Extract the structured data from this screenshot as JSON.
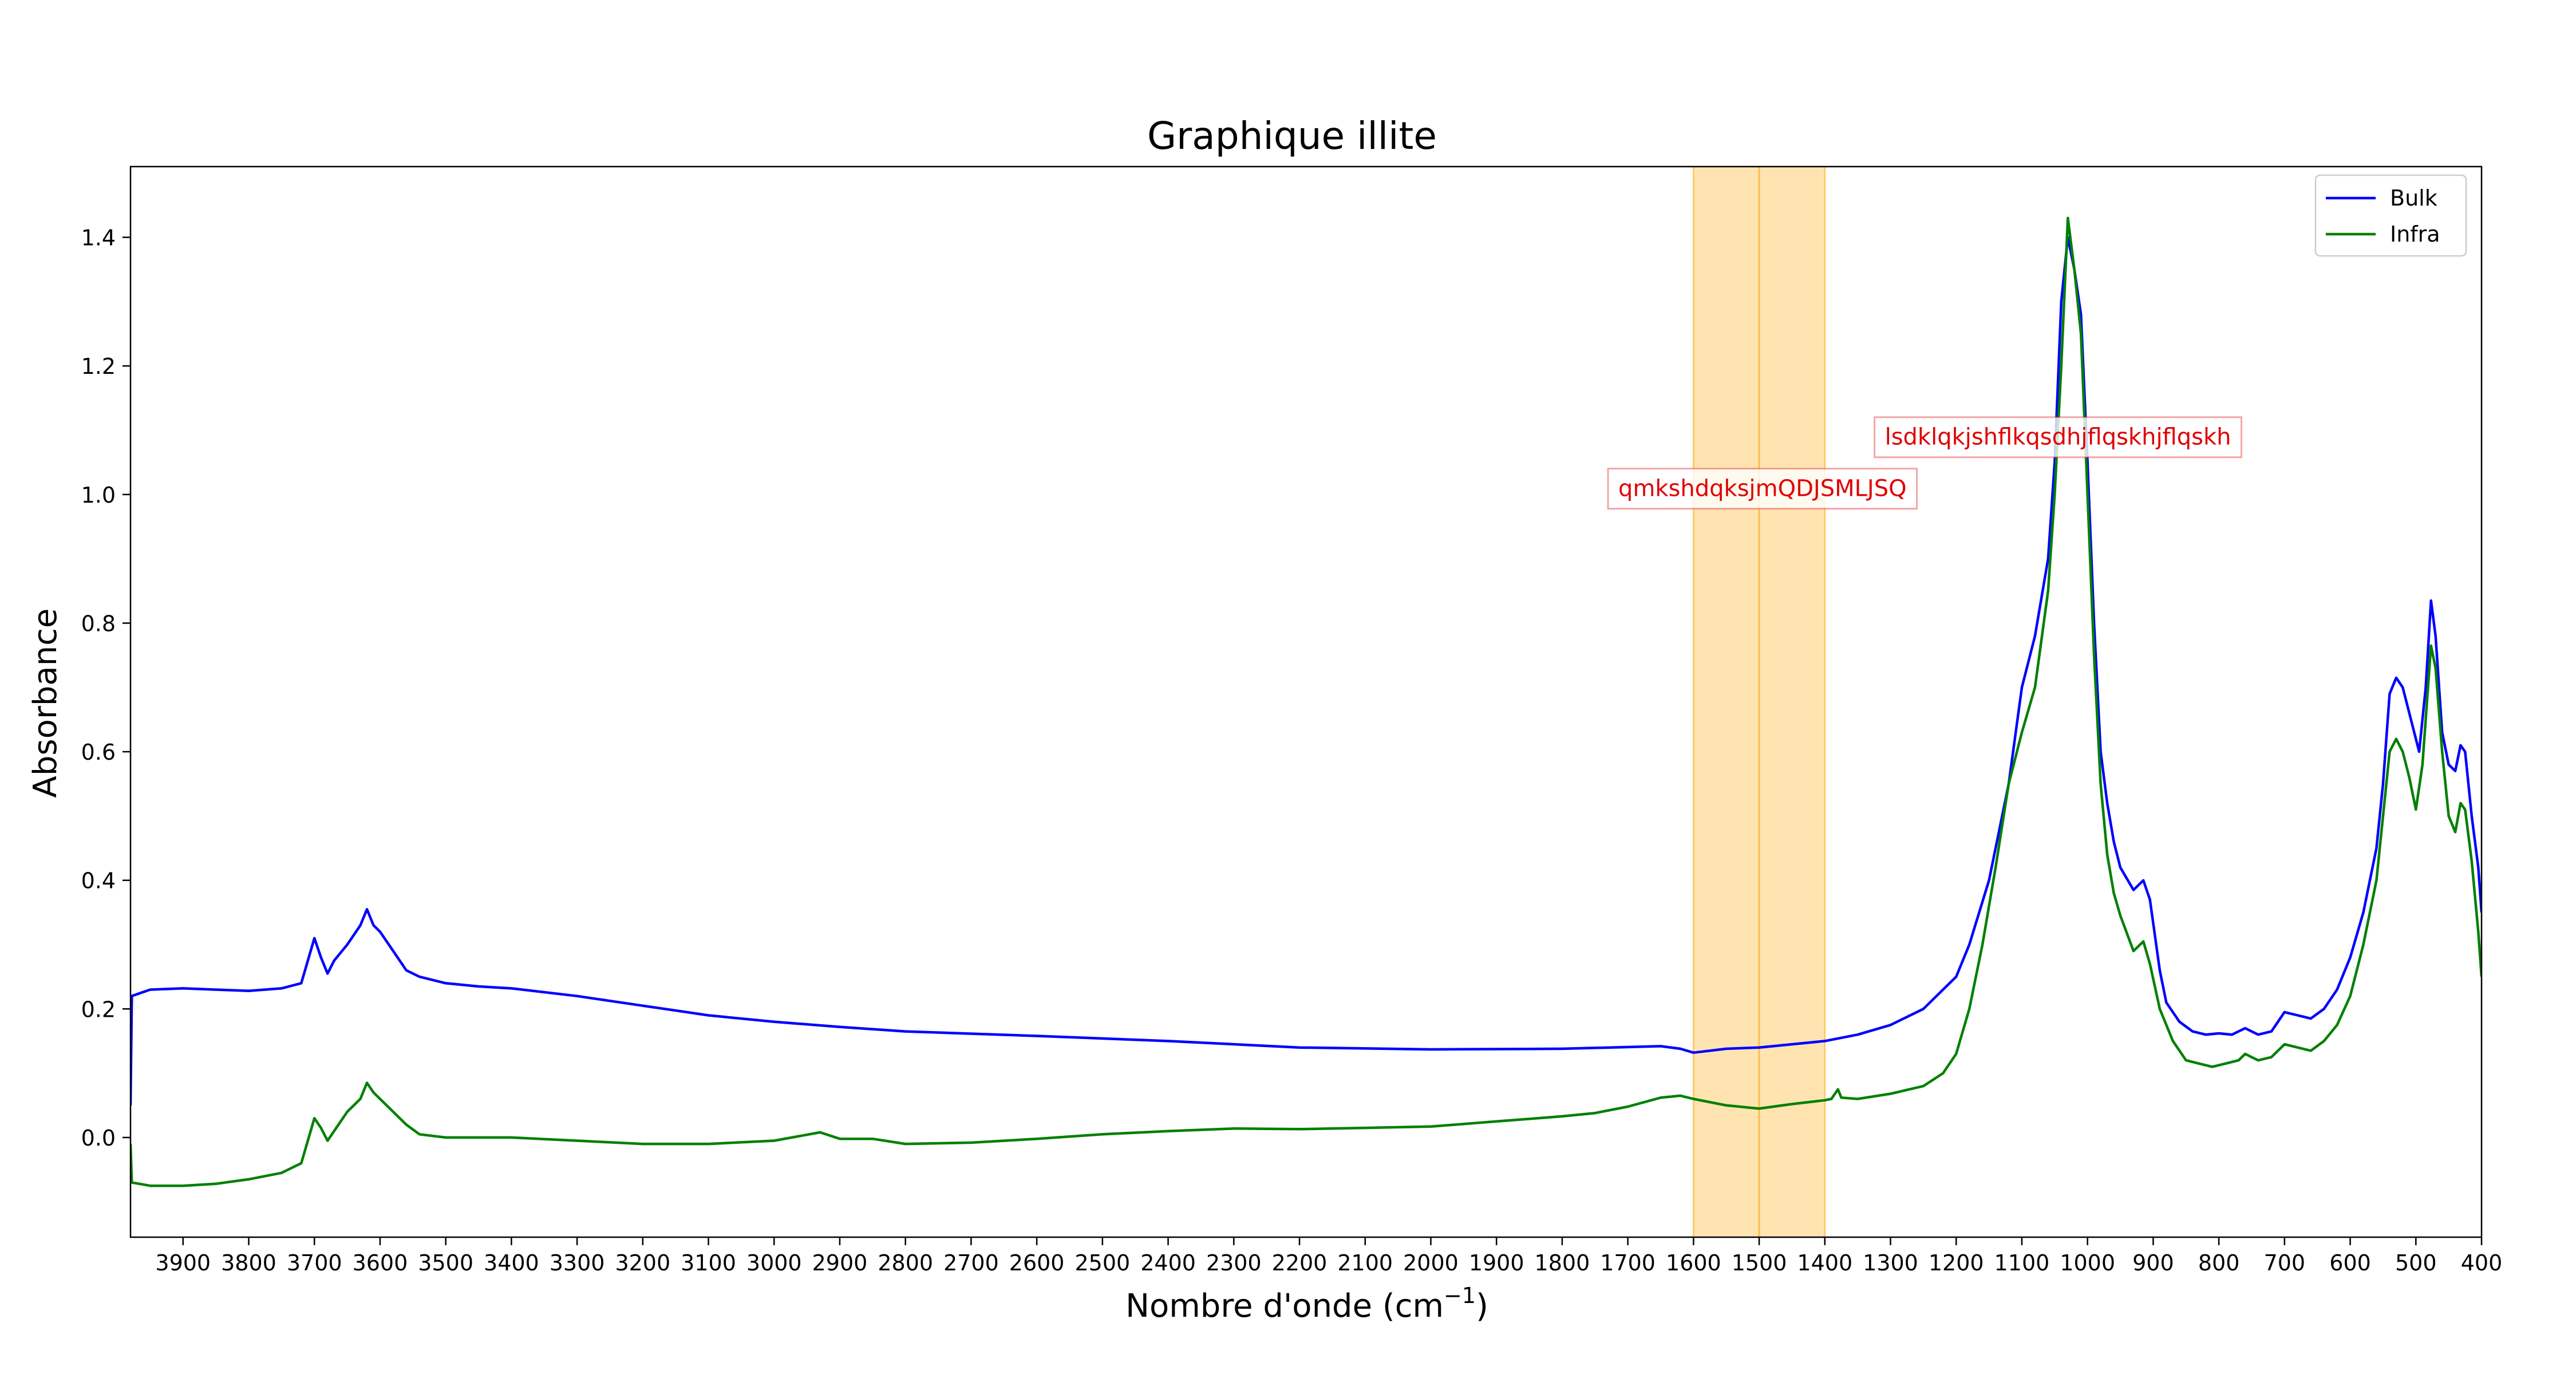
{
  "chart_data": {
    "type": "line",
    "title": "Graphique illite",
    "xlabel": "Nombre d'onde (cm",
    "xlabel_sup": "−1",
    "xlabel_close": ")",
    "ylabel": "Absorbance",
    "xlim": [
      3980,
      400
    ],
    "x_inverted": true,
    "ylim": [
      -0.155,
      1.51
    ],
    "x_ticks": [
      3900,
      3800,
      3700,
      3600,
      3500,
      3400,
      3300,
      3200,
      3100,
      3000,
      2900,
      2800,
      2700,
      2600,
      2500,
      2400,
      2300,
      2200,
      2100,
      2000,
      1900,
      1800,
      1700,
      1600,
      1500,
      1400,
      1300,
      1200,
      1100,
      1000,
      900,
      800,
      700,
      600,
      500,
      400
    ],
    "y_ticks": [
      0.0,
      0.2,
      0.4,
      0.6,
      0.8,
      1.0,
      1.2,
      1.4
    ],
    "y_tick_labels": [
      "0.0",
      "0.2",
      "0.4",
      "0.6",
      "0.8",
      "1.0",
      "1.2",
      "1.4"
    ],
    "grid": false,
    "legend_position": "top-right",
    "highlight_band": {
      "x_from": 1600,
      "x_to": 1400,
      "center_line": 1500,
      "color": "#ffa500"
    },
    "annotations": [
      {
        "text": "lsdklqkjshflkqsdhjflqskhjflqskh",
        "x": 1045,
        "y": 1.09,
        "color": "#e00000"
      },
      {
        "text": "qmkshdqksjmQDJSMLJSQ",
        "x": 1495,
        "y": 1.01,
        "color": "#e00000"
      }
    ],
    "series": [
      {
        "name": "Bulk",
        "color": "#0000ff",
        "points": [
          [
            3980,
            0.05
          ],
          [
            3978,
            0.22
          ],
          [
            3950,
            0.23
          ],
          [
            3900,
            0.232
          ],
          [
            3850,
            0.23
          ],
          [
            3800,
            0.228
          ],
          [
            3750,
            0.232
          ],
          [
            3720,
            0.24
          ],
          [
            3700,
            0.31
          ],
          [
            3690,
            0.28
          ],
          [
            3680,
            0.255
          ],
          [
            3670,
            0.275
          ],
          [
            3650,
            0.3
          ],
          [
            3630,
            0.33
          ],
          [
            3620,
            0.355
          ],
          [
            3610,
            0.33
          ],
          [
            3600,
            0.32
          ],
          [
            3580,
            0.29
          ],
          [
            3560,
            0.26
          ],
          [
            3540,
            0.25
          ],
          [
            3500,
            0.24
          ],
          [
            3450,
            0.235
          ],
          [
            3400,
            0.232
          ],
          [
            3300,
            0.22
          ],
          [
            3200,
            0.205
          ],
          [
            3100,
            0.19
          ],
          [
            3000,
            0.18
          ],
          [
            2900,
            0.172
          ],
          [
            2800,
            0.165
          ],
          [
            2600,
            0.158
          ],
          [
            2400,
            0.15
          ],
          [
            2200,
            0.14
          ],
          [
            2000,
            0.137
          ],
          [
            1800,
            0.138
          ],
          [
            1650,
            0.142
          ],
          [
            1620,
            0.138
          ],
          [
            1600,
            0.132
          ],
          [
            1550,
            0.138
          ],
          [
            1500,
            0.14
          ],
          [
            1400,
            0.15
          ],
          [
            1350,
            0.16
          ],
          [
            1300,
            0.175
          ],
          [
            1250,
            0.2
          ],
          [
            1200,
            0.25
          ],
          [
            1180,
            0.3
          ],
          [
            1150,
            0.4
          ],
          [
            1120,
            0.55
          ],
          [
            1100,
            0.7
          ],
          [
            1080,
            0.78
          ],
          [
            1060,
            0.9
          ],
          [
            1050,
            1.05
          ],
          [
            1040,
            1.3
          ],
          [
            1030,
            1.4
          ],
          [
            1020,
            1.35
          ],
          [
            1010,
            1.28
          ],
          [
            1000,
            1.05
          ],
          [
            990,
            0.8
          ],
          [
            980,
            0.6
          ],
          [
            970,
            0.52
          ],
          [
            960,
            0.46
          ],
          [
            950,
            0.42
          ],
          [
            930,
            0.385
          ],
          [
            915,
            0.4
          ],
          [
            905,
            0.37
          ],
          [
            890,
            0.26
          ],
          [
            880,
            0.21
          ],
          [
            860,
            0.18
          ],
          [
            840,
            0.165
          ],
          [
            820,
            0.16
          ],
          [
            800,
            0.162
          ],
          [
            780,
            0.16
          ],
          [
            760,
            0.17
          ],
          [
            740,
            0.16
          ],
          [
            720,
            0.165
          ],
          [
            700,
            0.195
          ],
          [
            680,
            0.19
          ],
          [
            660,
            0.185
          ],
          [
            640,
            0.2
          ],
          [
            620,
            0.23
          ],
          [
            600,
            0.28
          ],
          [
            580,
            0.35
          ],
          [
            560,
            0.45
          ],
          [
            550,
            0.55
          ],
          [
            540,
            0.69
          ],
          [
            530,
            0.715
          ],
          [
            520,
            0.7
          ],
          [
            510,
            0.66
          ],
          [
            495,
            0.6
          ],
          [
            485,
            0.7
          ],
          [
            477,
            0.835
          ],
          [
            470,
            0.78
          ],
          [
            460,
            0.63
          ],
          [
            450,
            0.58
          ],
          [
            440,
            0.57
          ],
          [
            432,
            0.61
          ],
          [
            425,
            0.6
          ],
          [
            415,
            0.5
          ],
          [
            405,
            0.42
          ],
          [
            400,
            0.35
          ]
        ]
      },
      {
        "name": "Infra",
        "color": "#008000",
        "points": [
          [
            3980,
            -0.01
          ],
          [
            3978,
            -0.07
          ],
          [
            3950,
            -0.075
          ],
          [
            3900,
            -0.075
          ],
          [
            3850,
            -0.072
          ],
          [
            3800,
            -0.065
          ],
          [
            3750,
            -0.055
          ],
          [
            3720,
            -0.04
          ],
          [
            3700,
            0.03
          ],
          [
            3690,
            0.015
          ],
          [
            3680,
            -0.005
          ],
          [
            3670,
            0.01
          ],
          [
            3650,
            0.04
          ],
          [
            3630,
            0.06
          ],
          [
            3620,
            0.085
          ],
          [
            3610,
            0.07
          ],
          [
            3600,
            0.06
          ],
          [
            3580,
            0.04
          ],
          [
            3560,
            0.02
          ],
          [
            3540,
            0.005
          ],
          [
            3500,
            0.0
          ],
          [
            3400,
            0.0
          ],
          [
            3300,
            -0.005
          ],
          [
            3200,
            -0.01
          ],
          [
            3100,
            -0.01
          ],
          [
            3000,
            -0.005
          ],
          [
            2930,
            0.008
          ],
          [
            2900,
            -0.002
          ],
          [
            2850,
            -0.002
          ],
          [
            2800,
            -0.01
          ],
          [
            2700,
            -0.008
          ],
          [
            2600,
            -0.002
          ],
          [
            2500,
            0.005
          ],
          [
            2400,
            0.01
          ],
          [
            2300,
            0.014
          ],
          [
            2200,
            0.013
          ],
          [
            2100,
            0.015
          ],
          [
            2000,
            0.017
          ],
          [
            1900,
            0.025
          ],
          [
            1800,
            0.033
          ],
          [
            1750,
            0.038
          ],
          [
            1700,
            0.048
          ],
          [
            1650,
            0.062
          ],
          [
            1620,
            0.065
          ],
          [
            1600,
            0.06
          ],
          [
            1550,
            0.05
          ],
          [
            1500,
            0.045
          ],
          [
            1450,
            0.052
          ],
          [
            1400,
            0.058
          ],
          [
            1390,
            0.06
          ],
          [
            1380,
            0.075
          ],
          [
            1375,
            0.062
          ],
          [
            1350,
            0.06
          ],
          [
            1300,
            0.068
          ],
          [
            1250,
            0.08
          ],
          [
            1220,
            0.1
          ],
          [
            1200,
            0.13
          ],
          [
            1180,
            0.2
          ],
          [
            1160,
            0.3
          ],
          [
            1140,
            0.42
          ],
          [
            1120,
            0.55
          ],
          [
            1100,
            0.63
          ],
          [
            1080,
            0.7
          ],
          [
            1060,
            0.85
          ],
          [
            1050,
            1.0
          ],
          [
            1040,
            1.2
          ],
          [
            1030,
            1.43
          ],
          [
            1020,
            1.35
          ],
          [
            1010,
            1.25
          ],
          [
            1000,
            1.0
          ],
          [
            990,
            0.75
          ],
          [
            980,
            0.55
          ],
          [
            970,
            0.44
          ],
          [
            960,
            0.38
          ],
          [
            950,
            0.345
          ],
          [
            930,
            0.29
          ],
          [
            915,
            0.305
          ],
          [
            905,
            0.27
          ],
          [
            890,
            0.2
          ],
          [
            870,
            0.15
          ],
          [
            850,
            0.12
          ],
          [
            830,
            0.115
          ],
          [
            810,
            0.11
          ],
          [
            790,
            0.115
          ],
          [
            770,
            0.12
          ],
          [
            760,
            0.13
          ],
          [
            740,
            0.12
          ],
          [
            720,
            0.125
          ],
          [
            700,
            0.145
          ],
          [
            680,
            0.14
          ],
          [
            660,
            0.135
          ],
          [
            640,
            0.15
          ],
          [
            620,
            0.175
          ],
          [
            600,
            0.22
          ],
          [
            580,
            0.3
          ],
          [
            560,
            0.4
          ],
          [
            550,
            0.5
          ],
          [
            540,
            0.6
          ],
          [
            530,
            0.62
          ],
          [
            520,
            0.6
          ],
          [
            510,
            0.56
          ],
          [
            500,
            0.51
          ],
          [
            490,
            0.58
          ],
          [
            477,
            0.765
          ],
          [
            470,
            0.73
          ],
          [
            460,
            0.6
          ],
          [
            450,
            0.5
          ],
          [
            440,
            0.475
          ],
          [
            432,
            0.52
          ],
          [
            425,
            0.51
          ],
          [
            415,
            0.43
          ],
          [
            405,
            0.32
          ],
          [
            400,
            0.25
          ]
        ]
      }
    ]
  }
}
